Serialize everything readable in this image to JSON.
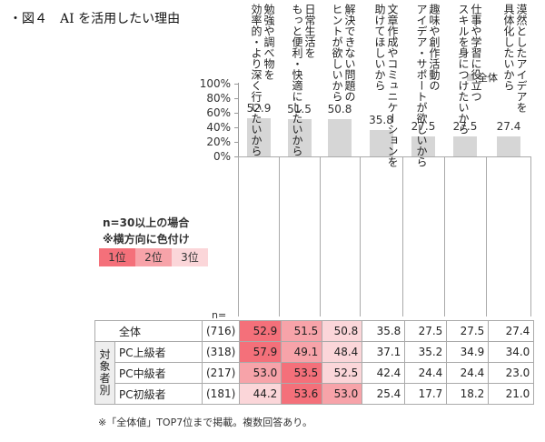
{
  "title": "・図４　AI を活用したい理由",
  "legend": {
    "label": "全体",
    "color": "#d4d4d4"
  },
  "y_axis": {
    "ticks": [
      "100%",
      "80%",
      "60%",
      "40%",
      "20%",
      "0%"
    ]
  },
  "categories": [
    "勉強や調べ物を\n効率的・より深く行いたいから",
    "日常生活を\nもっと便利・快適にしたいから",
    "解決できない問題の\nヒントが欲しいから",
    "文章作成やコミュニケーションを\n助けてほしいから",
    "趣味や創作活動の\nアイデア・サポートが欲しいから",
    "仕事や学習に役立つ\nスキルを身につけたいから",
    "漠然としたアイデアを\n具体化したいから"
  ],
  "bar_values": [
    "52.9",
    "51.5",
    "50.8",
    "35.8",
    "27.5",
    "27.5",
    "27.4"
  ],
  "notes": {
    "line1": "n=30以上の場合",
    "line2": "※横方向に色付け",
    "rank1": "1位",
    "rank2": "2位",
    "rank3": "3位",
    "rank_colors": {
      "rank1": "#f4707a",
      "rank2": "#f7a3a9",
      "rank3": "#fbd6d9"
    }
  },
  "table": {
    "n_label": "n=",
    "group_label": "対\n象\n者\n別",
    "rows": [
      {
        "name": "全体",
        "n": "(716)",
        "values": [
          "52.9",
          "51.5",
          "50.8",
          "35.8",
          "27.5",
          "27.5",
          "27.4"
        ],
        "ranks": [
          1,
          2,
          3,
          0,
          0,
          0,
          0
        ]
      },
      {
        "name": "PC上級者",
        "n": "(318)",
        "values": [
          "57.9",
          "49.1",
          "48.4",
          "37.1",
          "35.2",
          "34.9",
          "34.0"
        ],
        "ranks": [
          1,
          2,
          3,
          0,
          0,
          0,
          0
        ]
      },
      {
        "name": "PC中級者",
        "n": "(217)",
        "values": [
          "53.0",
          "53.5",
          "52.5",
          "42.4",
          "24.4",
          "24.4",
          "23.0"
        ],
        "ranks": [
          2,
          1,
          3,
          0,
          0,
          0,
          0
        ]
      },
      {
        "name": "PC初級者",
        "n": "(181)",
        "values": [
          "44.2",
          "53.6",
          "53.0",
          "25.4",
          "17.7",
          "18.2",
          "21.0"
        ],
        "ranks": [
          3,
          1,
          2,
          0,
          0,
          0,
          0
        ]
      }
    ]
  },
  "footnote": "※「全体値」TOP7位まで掲載。複数回答あり。",
  "chart_data": {
    "type": "bar",
    "title": "AIを活用したい理由",
    "categories": [
      "勉強や調べ物を効率的・より深く行いたいから",
      "日常生活をもっと便利・快適にしたいから",
      "解決できない問題のヒントが欲しいから",
      "文章作成やコミュニケーションを助けてほしいから",
      "趣味や創作活動のアイデア・サポートが欲しいから",
      "仕事や学習に役立つスキルを身につけたいから",
      "漠然としたアイデアを具体化したいから"
    ],
    "series": [
      {
        "name": "全体 (716)",
        "values": [
          52.9,
          51.5,
          50.8,
          35.8,
          27.5,
          27.5,
          27.4
        ]
      },
      {
        "name": "PC上級者 (318)",
        "values": [
          57.9,
          49.1,
          48.4,
          37.1,
          35.2,
          34.9,
          34.0
        ]
      },
      {
        "name": "PC中級者 (217)",
        "values": [
          53.0,
          53.5,
          52.5,
          42.4,
          24.4,
          24.4,
          23.0
        ]
      },
      {
        "name": "PC初級者 (181)",
        "values": [
          44.2,
          53.6,
          53.0,
          25.4,
          17.7,
          18.2,
          21.0
        ]
      }
    ],
    "plotted_series": "全体",
    "xlabel": "",
    "ylabel": "%",
    "ylim": [
      0,
      100
    ],
    "yticks": [
      "0%",
      "20%",
      "40%",
      "60%",
      "80%",
      "100%"
    ],
    "legend": [
      "全体"
    ],
    "legend_position": "top-right",
    "grid": false
  }
}
